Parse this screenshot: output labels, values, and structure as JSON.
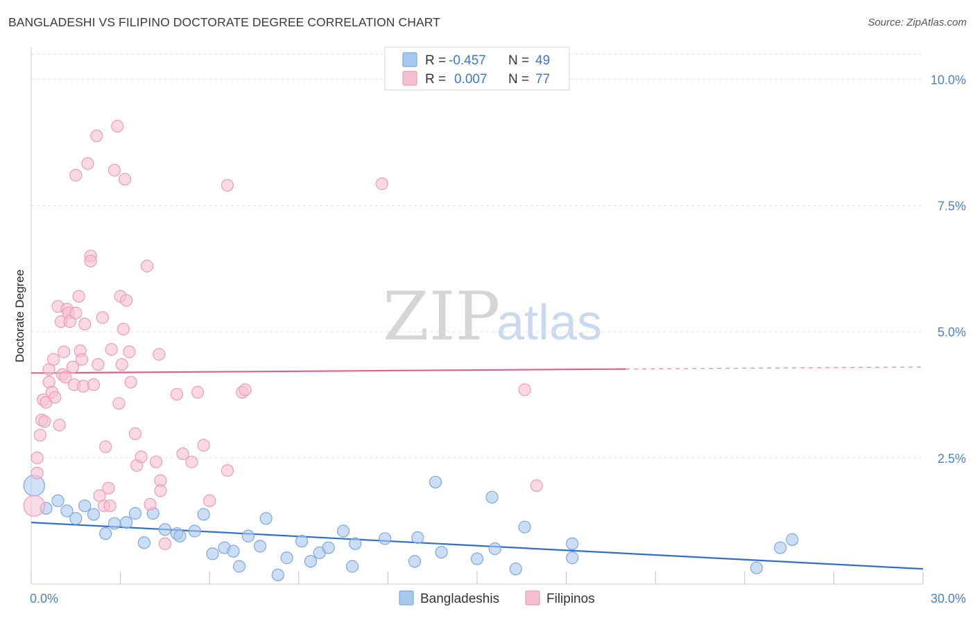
{
  "title": "BANGLADESHI VS FILIPINO DOCTORATE DEGREE CORRELATION CHART",
  "source": "Source: ZipAtlas.com",
  "watermark": {
    "zip": "ZIP",
    "atlas": "atlas"
  },
  "colors": {
    "blue_fill": "#a9c8f0",
    "blue_stroke": "#7ba7e0",
    "blue_line": "#2f6fcb",
    "pink_fill": "#f6bfd1",
    "pink_stroke": "#ec9bb7",
    "pink_line": "#e0608c",
    "grid": "#e3e3e3",
    "tick_text": "#4a7fc9"
  },
  "legend": {
    "rows": [
      {
        "r_label": "R =",
        "r_value": "-0.457",
        "n_label": "N =",
        "n_value": "49",
        "series": "Bangladeshis"
      },
      {
        "r_label": "R =",
        "r_value": "0.007",
        "n_label": "N =",
        "n_value": "77",
        "series": "Filipinos"
      }
    ]
  },
  "bottom_legend": [
    "Bangladeshis",
    "Filipinos"
  ],
  "chart_data": {
    "type": "scatter",
    "title": "BANGLADESHI VS FILIPINO DOCTORATE DEGREE CORRELATION CHART",
    "xlabel": "",
    "ylabel": "Doctorate Degree",
    "xlim": [
      0,
      30
    ],
    "ylim": [
      0,
      10.5
    ],
    "x_tick_labels": [
      "0.0%",
      "30.0%"
    ],
    "y_ticks": [
      2.5,
      5.0,
      7.5,
      10.0
    ],
    "y_tick_labels": [
      "2.5%",
      "5.0%",
      "7.5%",
      "10.0%"
    ],
    "grid": true,
    "legend_position": "top-center",
    "series": [
      {
        "name": "Bangladeshis",
        "r": -0.457,
        "n": 49,
        "trend": {
          "x": [
            0,
            30
          ],
          "y": [
            1.22,
            0.3
          ],
          "dashed_from_x": null
        },
        "points": [
          [
            0.1,
            1.95
          ],
          [
            0.5,
            1.5
          ],
          [
            0.9,
            1.65
          ],
          [
            1.2,
            1.45
          ],
          [
            1.5,
            1.3
          ],
          [
            1.8,
            1.55
          ],
          [
            2.1,
            1.38
          ],
          [
            2.5,
            1.0
          ],
          [
            2.8,
            1.2
          ],
          [
            3.2,
            1.22
          ],
          [
            3.5,
            1.4
          ],
          [
            3.8,
            0.82
          ],
          [
            4.1,
            1.4
          ],
          [
            4.5,
            1.08
          ],
          [
            4.9,
            1.0
          ],
          [
            5.0,
            0.95
          ],
          [
            5.5,
            1.05
          ],
          [
            5.8,
            1.38
          ],
          [
            6.1,
            0.6
          ],
          [
            6.5,
            0.72
          ],
          [
            6.8,
            0.65
          ],
          [
            7.0,
            0.35
          ],
          [
            7.3,
            0.95
          ],
          [
            7.7,
            0.75
          ],
          [
            7.9,
            1.3
          ],
          [
            8.3,
            0.18
          ],
          [
            8.6,
            0.52
          ],
          [
            9.1,
            0.85
          ],
          [
            9.4,
            0.45
          ],
          [
            9.7,
            0.62
          ],
          [
            10.0,
            0.72
          ],
          [
            10.5,
            1.05
          ],
          [
            10.8,
            0.35
          ],
          [
            10.9,
            0.8
          ],
          [
            11.9,
            0.9
          ],
          [
            12.9,
            0.45
          ],
          [
            13.0,
            0.92
          ],
          [
            13.6,
            2.02
          ],
          [
            13.8,
            0.63
          ],
          [
            15.0,
            0.5
          ],
          [
            15.5,
            1.72
          ],
          [
            15.6,
            0.7
          ],
          [
            16.3,
            0.3
          ],
          [
            16.6,
            1.13
          ],
          [
            18.2,
            0.8
          ],
          [
            18.2,
            0.52
          ],
          [
            24.4,
            0.32
          ],
          [
            25.2,
            0.72
          ],
          [
            25.6,
            0.88
          ]
        ]
      },
      {
        "name": "Filipinos",
        "r": 0.007,
        "n": 77,
        "trend": {
          "x": [
            0,
            30
          ],
          "y": [
            4.18,
            4.3
          ],
          "dashed_from_x": 20
        },
        "points": [
          [
            0.1,
            1.55
          ],
          [
            0.2,
            2.2
          ],
          [
            0.2,
            2.5
          ],
          [
            0.3,
            2.95
          ],
          [
            0.35,
            3.25
          ],
          [
            0.4,
            3.65
          ],
          [
            0.45,
            3.22
          ],
          [
            0.5,
            3.6
          ],
          [
            0.6,
            4.0
          ],
          [
            0.6,
            4.25
          ],
          [
            0.7,
            3.8
          ],
          [
            0.75,
            4.45
          ],
          [
            0.8,
            3.7
          ],
          [
            0.9,
            5.5
          ],
          [
            0.95,
            3.15
          ],
          [
            1.0,
            5.2
          ],
          [
            1.05,
            4.15
          ],
          [
            1.1,
            4.6
          ],
          [
            1.15,
            4.1
          ],
          [
            1.2,
            5.45
          ],
          [
            1.25,
            5.37
          ],
          [
            1.3,
            5.2
          ],
          [
            1.4,
            4.3
          ],
          [
            1.45,
            3.95
          ],
          [
            1.5,
            8.1
          ],
          [
            1.5,
            5.37
          ],
          [
            1.6,
            5.7
          ],
          [
            1.65,
            4.62
          ],
          [
            1.7,
            4.45
          ],
          [
            1.75,
            3.92
          ],
          [
            1.8,
            5.15
          ],
          [
            1.9,
            8.33
          ],
          [
            2.0,
            6.5
          ],
          [
            2.0,
            6.4
          ],
          [
            2.1,
            3.95
          ],
          [
            2.2,
            8.88
          ],
          [
            2.25,
            4.35
          ],
          [
            2.3,
            1.75
          ],
          [
            2.4,
            5.28
          ],
          [
            2.45,
            1.55
          ],
          [
            2.5,
            2.72
          ],
          [
            2.6,
            1.9
          ],
          [
            2.65,
            1.55
          ],
          [
            2.7,
            4.65
          ],
          [
            2.8,
            8.2
          ],
          [
            2.9,
            9.07
          ],
          [
            2.95,
            3.58
          ],
          [
            3.0,
            5.7
          ],
          [
            3.05,
            4.35
          ],
          [
            3.1,
            5.05
          ],
          [
            3.15,
            8.02
          ],
          [
            3.2,
            5.62
          ],
          [
            3.3,
            4.6
          ],
          [
            3.35,
            4.0
          ],
          [
            3.5,
            2.98
          ],
          [
            3.55,
            2.35
          ],
          [
            3.7,
            2.52
          ],
          [
            3.9,
            6.3
          ],
          [
            4.0,
            1.58
          ],
          [
            4.2,
            2.42
          ],
          [
            4.3,
            4.55
          ],
          [
            4.35,
            2.05
          ],
          [
            4.35,
            1.85
          ],
          [
            4.5,
            0.8
          ],
          [
            4.9,
            3.76
          ],
          [
            5.1,
            2.58
          ],
          [
            5.4,
            2.42
          ],
          [
            5.6,
            3.8
          ],
          [
            5.8,
            2.75
          ],
          [
            6.0,
            1.65
          ],
          [
            6.6,
            2.25
          ],
          [
            6.6,
            7.9
          ],
          [
            7.1,
            3.8
          ],
          [
            7.2,
            3.85
          ],
          [
            11.8,
            7.93
          ],
          [
            16.6,
            3.85
          ],
          [
            17.0,
            1.95
          ]
        ]
      }
    ]
  }
}
